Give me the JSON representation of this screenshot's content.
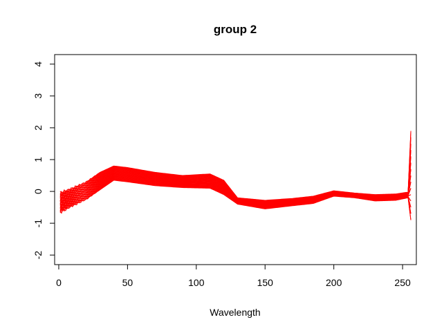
{
  "chart_data": {
    "type": "line",
    "title": "group 2",
    "xlabel": "Wavelength",
    "ylabel": "",
    "xlim": [
      -3,
      260
    ],
    "ylim": [
      -2.3,
      4.3
    ],
    "x_ticks": [
      0,
      50,
      100,
      150,
      200,
      250
    ],
    "y_ticks": [
      -2,
      -1,
      0,
      1,
      2,
      3,
      4
    ],
    "x_tick_labels": [
      "0",
      "50",
      "100",
      "150",
      "200",
      "250"
    ],
    "y_tick_labels": [
      "-2",
      "-1",
      "0",
      "1",
      "2",
      "3",
      "4"
    ],
    "grid": false,
    "legend": "none",
    "line_color": "#ff0000",
    "n_series": 30,
    "x_range": [
      1,
      256
    ],
    "series_envelope": {
      "x": [
        1,
        10,
        20,
        30,
        40,
        50,
        70,
        90,
        110,
        120,
        130,
        150,
        170,
        185,
        200,
        215,
        230,
        245,
        254,
        256
      ],
      "lower": [
        -0.65,
        -0.45,
        -0.25,
        0.05,
        0.35,
        0.3,
        0.18,
        0.12,
        0.1,
        -0.1,
        -0.4,
        -0.55,
        -0.45,
        -0.38,
        -0.15,
        -0.2,
        -0.3,
        -0.28,
        -0.2,
        -0.9
      ],
      "upper": [
        -0.05,
        0.1,
        0.3,
        0.6,
        0.8,
        0.75,
        0.6,
        0.5,
        0.55,
        0.35,
        -0.2,
        -0.28,
        -0.22,
        -0.15,
        0.02,
        -0.05,
        -0.1,
        -0.08,
        -0.02,
        2.0
      ]
    }
  }
}
